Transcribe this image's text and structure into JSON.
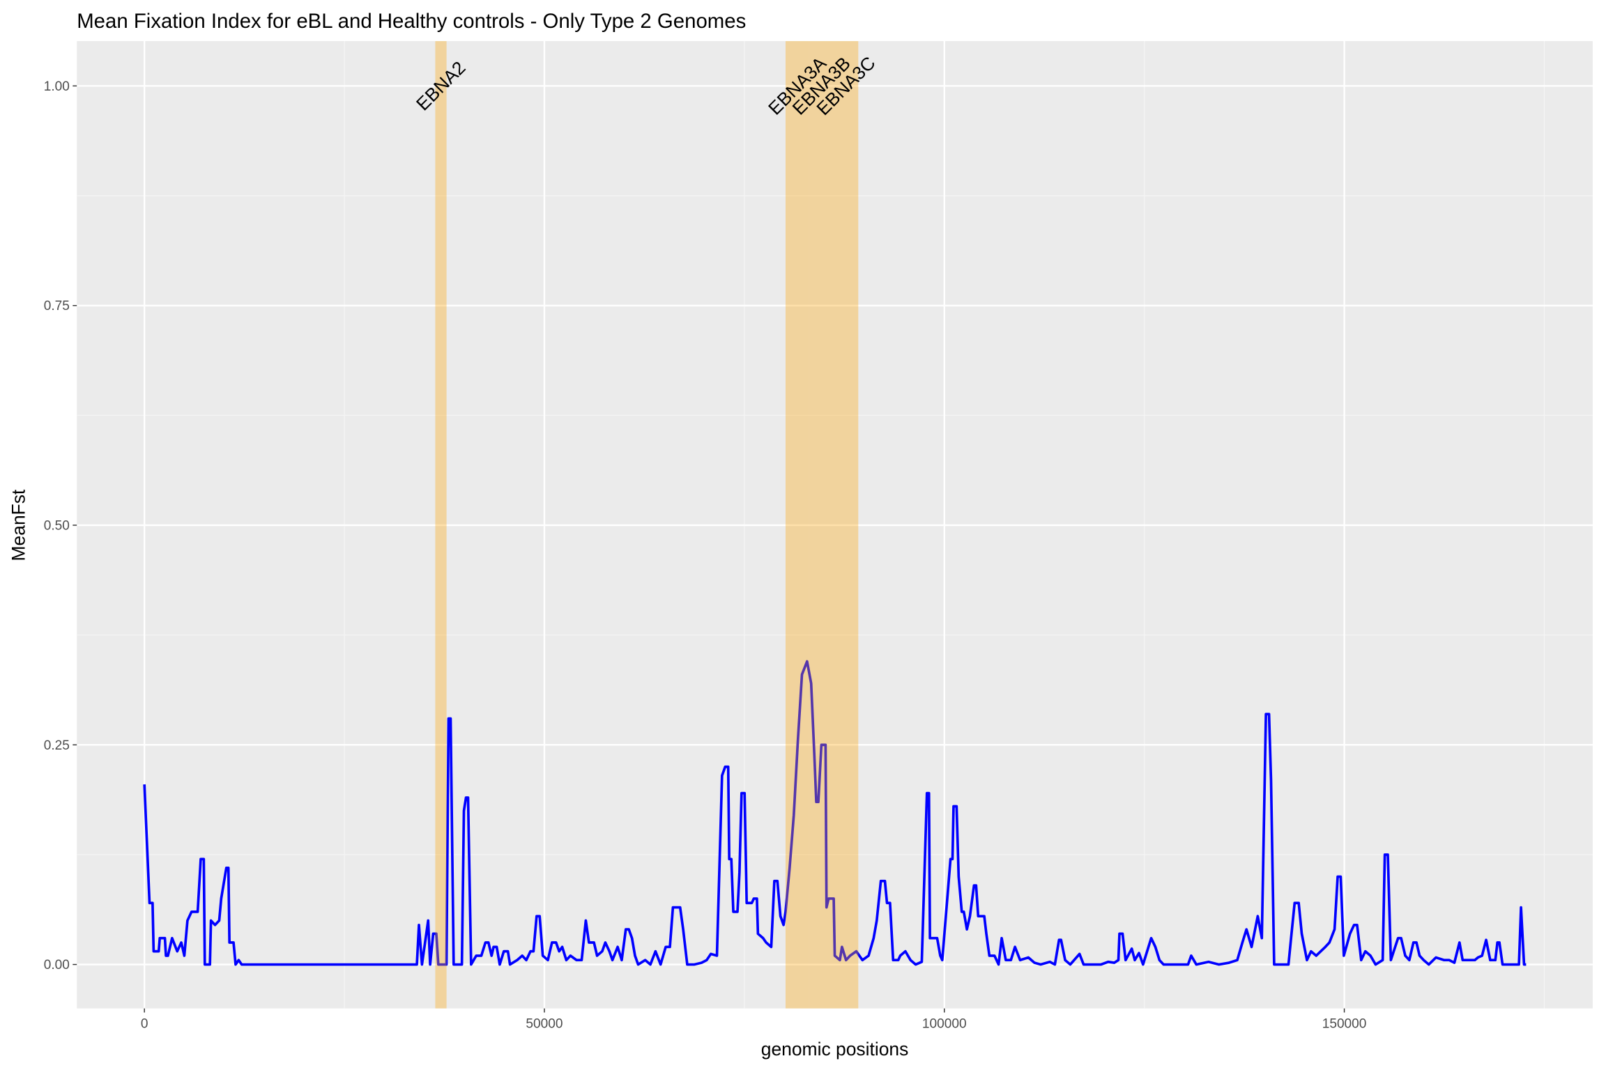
{
  "chart_data": {
    "type": "line",
    "title": "Mean Fixation Index for eBL and Healthy controls - Only Type 2 Genomes",
    "x_label": "genomic positions",
    "y_label": "MeanFst",
    "xlim": [
      -8450,
      181050
    ],
    "ylim": [
      -0.05,
      1.051
    ],
    "xticks": [
      0,
      50000,
      100000,
      150000
    ],
    "yticks": [
      {
        "value": 0,
        "label": "0.00"
      },
      {
        "value": 0.25,
        "label": "0.25"
      },
      {
        "value": 0.5,
        "label": "0.50"
      },
      {
        "value": 0.75,
        "label": "0.75"
      },
      {
        "value": 1,
        "label": "1.00"
      }
    ],
    "grid": true,
    "regions": [
      {
        "label": "EBNA2",
        "start": 36360,
        "end": 37770
      },
      {
        "label": "EBNA3A",
        "start": 80150,
        "end": 83100
      },
      {
        "label": "EBNA3B",
        "start": 83100,
        "end": 86170
      },
      {
        "label": "EBNA3C",
        "start": 86170,
        "end": 89240
      }
    ],
    "region_color": "orange",
    "region_label_y": 1.0,
    "series": [
      {
        "name": "MeanFst",
        "color": "#0000ff",
        "x": [
          0,
          640,
          1020,
          1150,
          1790,
          1920,
          2560,
          2690,
          2940,
          3460,
          4100,
          4610,
          4990,
          5380,
          5890,
          6660,
          7040,
          7420,
          7550,
          8190,
          8320,
          8830,
          9350,
          9600,
          10240,
          10500,
          10630,
          11140,
          11400,
          11780,
          12160,
          34060,
          34320,
          34700,
          35470,
          35720,
          36100,
          36490,
          36740,
          37760,
          38020,
          38280,
          38660,
          39690,
          39940,
          40200,
          40460,
          40840,
          41480,
          42120,
          42630,
          43010,
          43400,
          43650,
          44040,
          44420,
          44930,
          45440,
          45700,
          46600,
          47230,
          47740,
          48260,
          48640,
          49030,
          49410,
          49800,
          50440,
          50950,
          51460,
          51850,
          52230,
          52740,
          53260,
          54020,
          54660,
          55180,
          55570,
          56200,
          56590,
          57230,
          57620,
          58130,
          58510,
          59160,
          59670,
          60180,
          60560,
          60950,
          61330,
          61720,
          62610,
          63250,
          63890,
          64530,
          65170,
          65690,
          66070,
          66970,
          67350,
          67860,
          68760,
          69660,
          70290,
          70810,
          71570,
          72210,
          72600,
          72980,
          73110,
          73370,
          73620,
          74140,
          74390,
          74650,
          75030,
          75290,
          75930,
          76180,
          76570,
          76700,
          77340,
          77720,
          78360,
          78750,
          79130,
          79510,
          79900,
          80150,
          80660,
          81180,
          81690,
          82200,
          82840,
          83350,
          83740,
          83990,
          84250,
          84630,
          85150,
          85270,
          85530,
          86170,
          86300,
          86940,
          87200,
          87710,
          88220,
          88990,
          89760,
          90530,
          91160,
          91550,
          92060,
          92570,
          92830,
          93210,
          93600,
          94240,
          94490,
          95130,
          95770,
          96410,
          97180,
          97820,
          98080,
          98200,
          99100,
          99490,
          99740,
          100770,
          101020,
          101150,
          101530,
          101790,
          102180,
          102430,
          102820,
          103200,
          103710,
          103970,
          104230,
          104990,
          105250,
          105630,
          106270,
          106780,
          107170,
          107680,
          108320,
          108830,
          109470,
          110500,
          111260,
          112040,
          113190,
          113820,
          114340,
          114590,
          115100,
          115740,
          116900,
          117410,
          119590,
          120480,
          121250,
          121760,
          121890,
          122280,
          122660,
          123430,
          123810,
          124330,
          124840,
          125860,
          126380,
          126890,
          127400,
          130470,
          130860,
          131500,
          133030,
          134310,
          135590,
          136620,
          137260,
          137770,
          138410,
          139180,
          139690,
          140200,
          140590,
          140840,
          141230,
          143020,
          143400,
          143790,
          144300,
          144680,
          145330,
          145840,
          146480,
          147630,
          148140,
          148780,
          149170,
          149550,
          149940,
          150710,
          151220,
          151600,
          152110,
          152630,
          153270,
          153910,
          154800,
          155060,
          155440,
          155820,
          156720,
          157100,
          157620,
          158130,
          158640,
          159020,
          159410,
          159920,
          160560,
          161460,
          162480,
          163120,
          163760,
          164400,
          164790,
          166320,
          166710,
          167220,
          167730,
          168240,
          168880,
          169140,
          169390,
          169780,
          171830,
          172090,
          172470,
          172730
        ],
        "values": [
          0.205,
          0.07,
          0.07,
          0.015,
          0.015,
          0.03,
          0.03,
          0.01,
          0.01,
          0.03,
          0.015,
          0.025,
          0.01,
          0.05,
          0.06,
          0.06,
          0.12,
          0.12,
          0.0,
          0.0,
          0.05,
          0.045,
          0.05,
          0.075,
          0.11,
          0.11,
          0.025,
          0.025,
          0.0,
          0.005,
          0.0,
          0.0,
          0.045,
          0.0,
          0.05,
          0.0,
          0.035,
          0.035,
          0.0,
          0.0,
          0.28,
          0.28,
          0.0,
          0.0,
          0.175,
          0.19,
          0.19,
          0.0,
          0.01,
          0.01,
          0.025,
          0.025,
          0.01,
          0.02,
          0.02,
          0.0,
          0.015,
          0.015,
          0.0,
          0.005,
          0.01,
          0.005,
          0.015,
          0.015,
          0.055,
          0.055,
          0.01,
          0.005,
          0.025,
          0.025,
          0.015,
          0.02,
          0.005,
          0.01,
          0.005,
          0.005,
          0.05,
          0.025,
          0.025,
          0.01,
          0.015,
          0.025,
          0.015,
          0.005,
          0.02,
          0.005,
          0.04,
          0.04,
          0.03,
          0.01,
          0.0,
          0.005,
          0.0,
          0.015,
          0.0,
          0.02,
          0.02,
          0.065,
          0.065,
          0.04,
          0.0,
          0.0,
          0.002,
          0.005,
          0.012,
          0.01,
          0.215,
          0.225,
          0.225,
          0.12,
          0.12,
          0.06,
          0.06,
          0.105,
          0.195,
          0.195,
          0.07,
          0.07,
          0.075,
          0.075,
          0.035,
          0.03,
          0.025,
          0.02,
          0.095,
          0.095,
          0.055,
          0.045,
          0.06,
          0.11,
          0.17,
          0.255,
          0.33,
          0.345,
          0.32,
          0.24,
          0.185,
          0.185,
          0.25,
          0.25,
          0.065,
          0.075,
          0.075,
          0.01,
          0.005,
          0.02,
          0.005,
          0.01,
          0.015,
          0.005,
          0.01,
          0.03,
          0.05,
          0.095,
          0.095,
          0.07,
          0.07,
          0.005,
          0.005,
          0.01,
          0.015,
          0.005,
          0.0,
          0.003,
          0.195,
          0.195,
          0.03,
          0.03,
          0.01,
          0.005,
          0.12,
          0.12,
          0.18,
          0.18,
          0.1,
          0.06,
          0.06,
          0.04,
          0.055,
          0.09,
          0.09,
          0.055,
          0.055,
          0.035,
          0.01,
          0.01,
          0.0,
          0.03,
          0.005,
          0.005,
          0.02,
          0.005,
          0.008,
          0.002,
          0.0,
          0.003,
          0.0,
          0.028,
          0.028,
          0.005,
          0.0,
          0.012,
          0.0,
          0.0,
          0.003,
          0.002,
          0.005,
          0.035,
          0.035,
          0.005,
          0.018,
          0.005,
          0.013,
          0.0,
          0.03,
          0.02,
          0.005,
          0.0,
          0.0,
          0.01,
          0.0,
          0.003,
          0.0,
          0.002,
          0.005,
          0.025,
          0.04,
          0.02,
          0.055,
          0.03,
          0.285,
          0.285,
          0.21,
          0.0,
          0.0,
          0.035,
          0.07,
          0.07,
          0.035,
          0.005,
          0.015,
          0.01,
          0.02,
          0.025,
          0.04,
          0.1,
          0.1,
          0.01,
          0.035,
          0.045,
          0.045,
          0.005,
          0.015,
          0.01,
          0.0,
          0.005,
          0.125,
          0.125,
          0.005,
          0.03,
          0.03,
          0.01,
          0.005,
          0.025,
          0.025,
          0.01,
          0.005,
          0.0,
          0.008,
          0.005,
          0.005,
          0.002,
          0.025,
          0.005,
          0.005,
          0.008,
          0.01,
          0.028,
          0.005,
          0.005,
          0.025,
          0.025,
          0.0,
          0.0,
          0.065,
          0.0,
          0.0
        ]
      }
    ]
  }
}
